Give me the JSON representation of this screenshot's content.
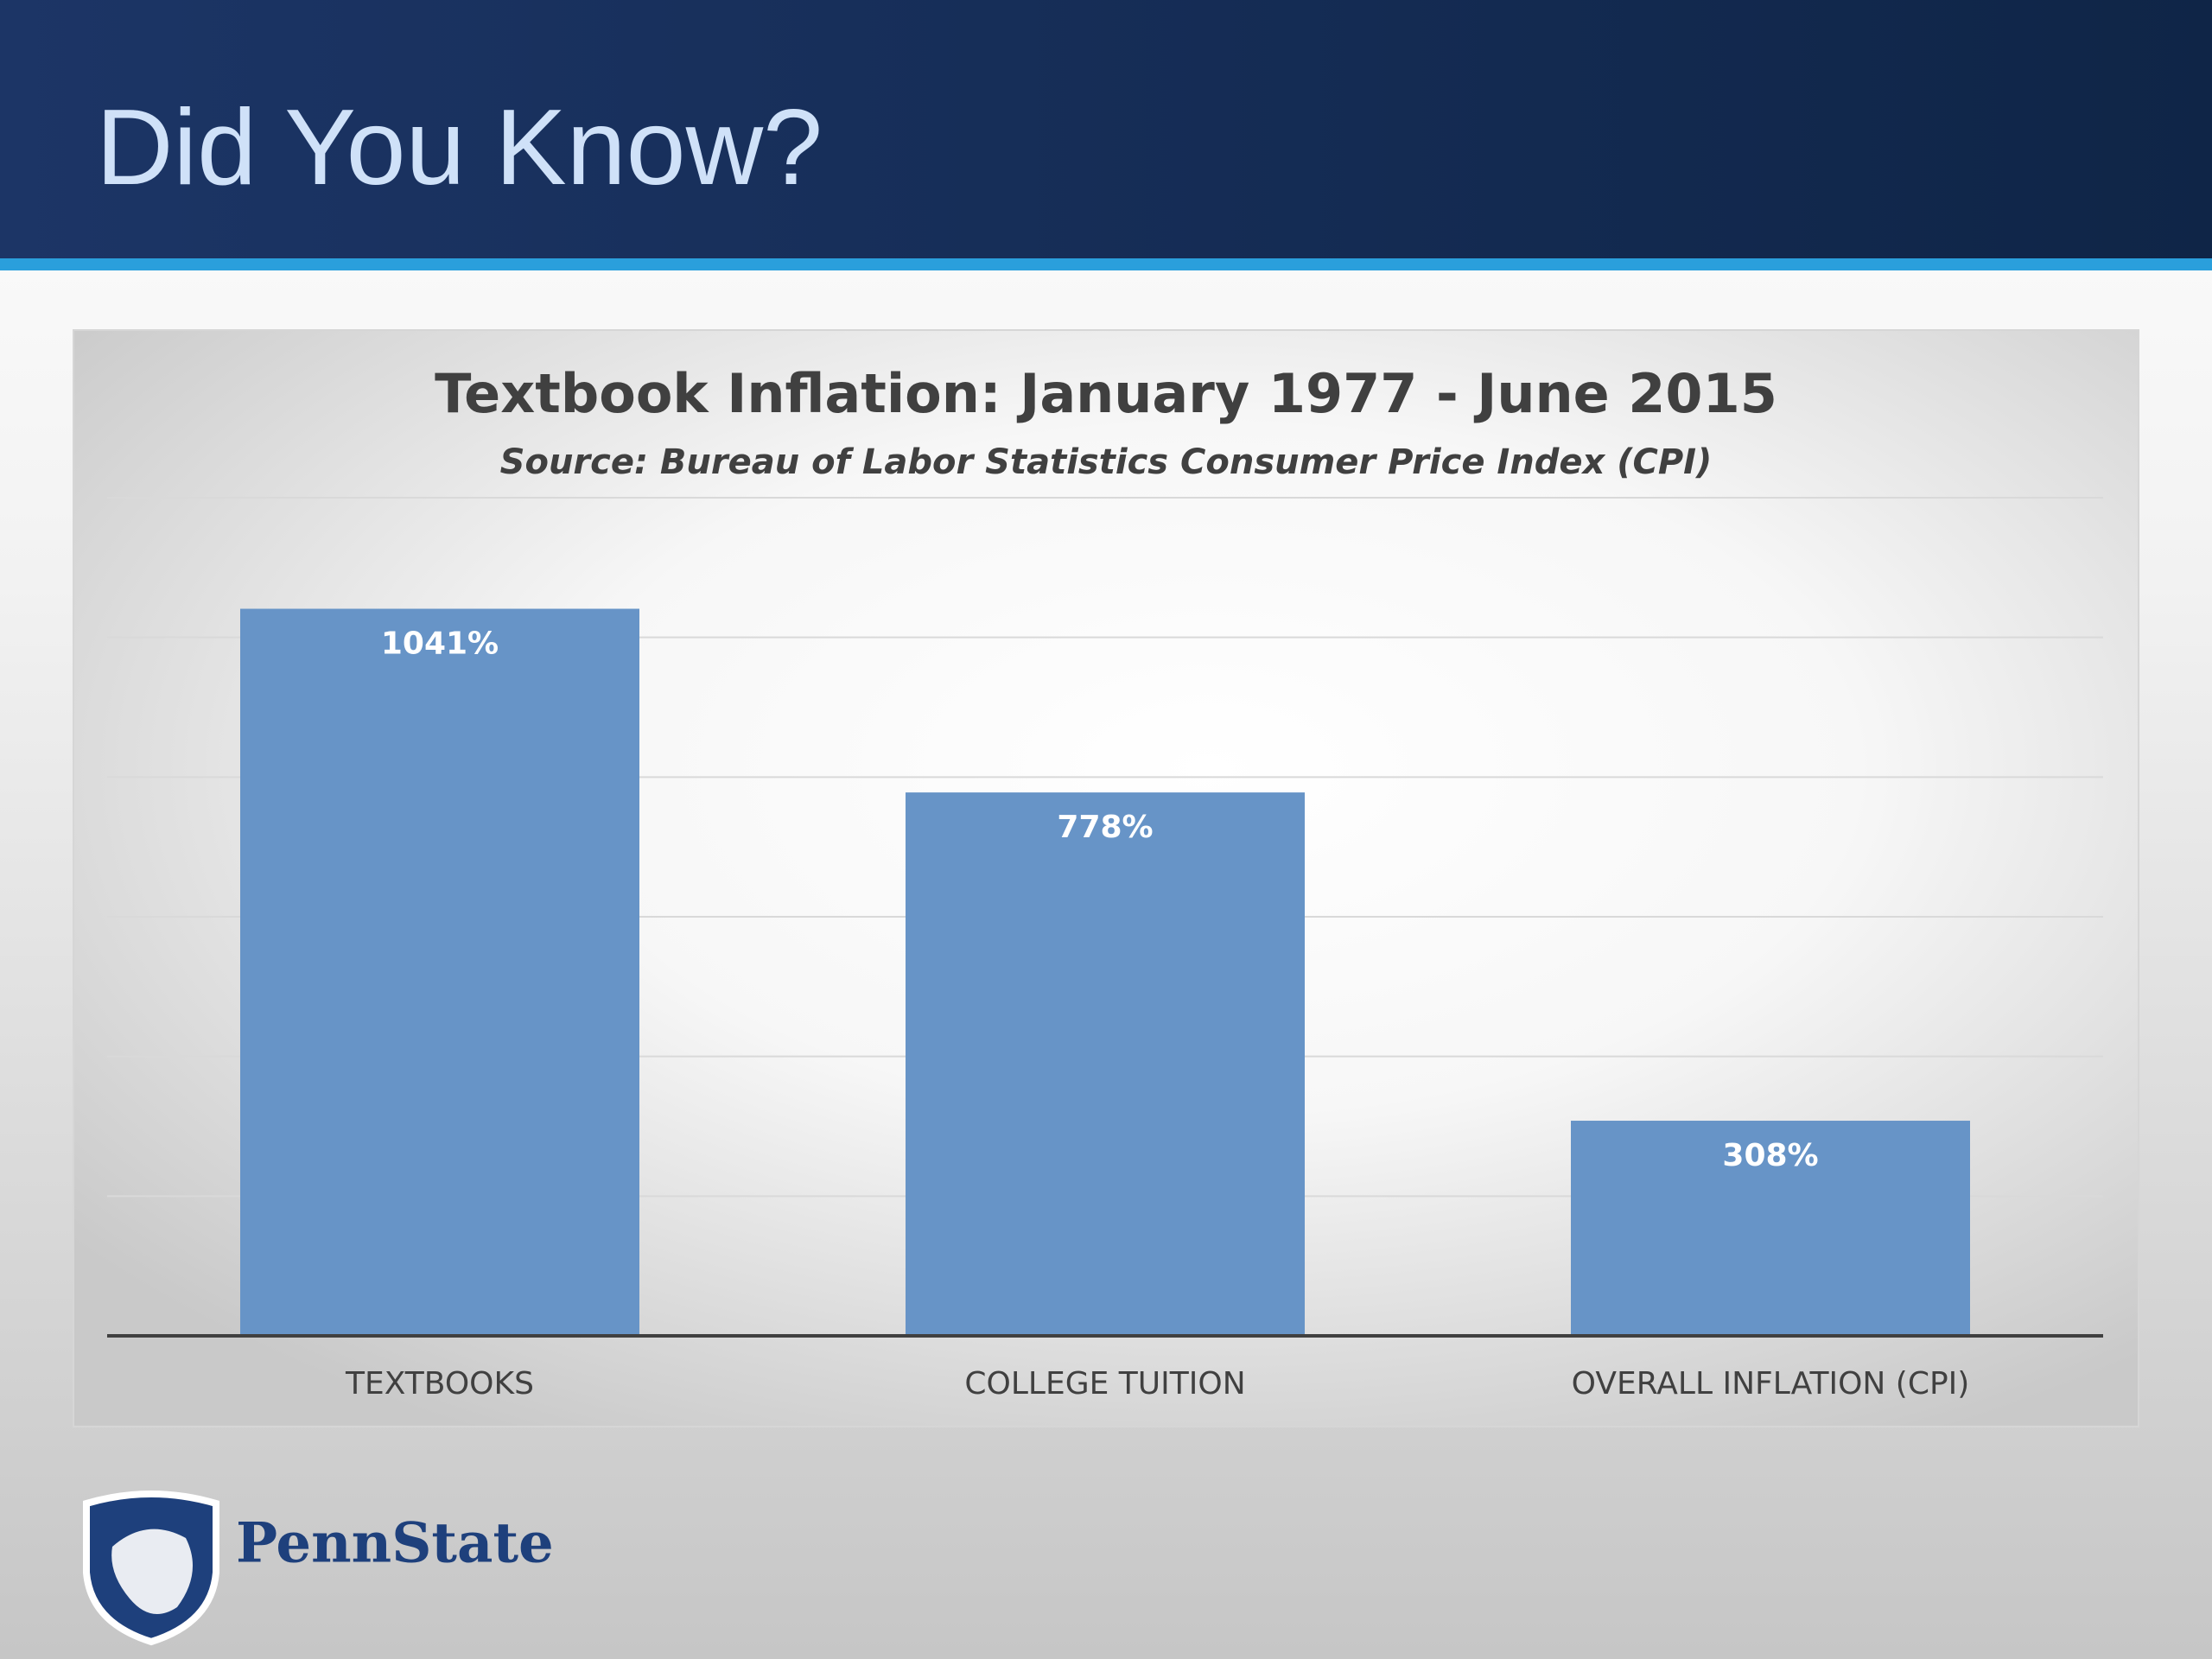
{
  "header": {
    "title": "Did You Know?"
  },
  "chart_data": {
    "type": "bar",
    "title": "Textbook Inflation: January 1977 - June 2015",
    "subtitle": "Source: Bureau of Labor Statistics Consumer Price Index (CPI)",
    "categories": [
      "TEXTBOOKS",
      "COLLEGE TUITION",
      "OVERALL INFLATION (CPI)"
    ],
    "values": [
      1041,
      778,
      308
    ],
    "value_labels": [
      "1041%",
      "778%",
      "308%"
    ],
    "color": "#6794c7",
    "ylim": [
      0,
      1200
    ],
    "yticks": [
      0,
      200,
      400,
      600,
      800,
      1000,
      1200
    ],
    "grid": true
  },
  "footer": {
    "logo_text": "PennState"
  }
}
